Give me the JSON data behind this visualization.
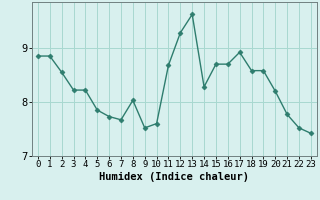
{
  "x": [
    0,
    1,
    2,
    3,
    4,
    5,
    6,
    7,
    8,
    9,
    10,
    11,
    12,
    13,
    14,
    15,
    16,
    17,
    18,
    19,
    20,
    21,
    22,
    23
  ],
  "y": [
    8.85,
    8.85,
    8.55,
    8.22,
    8.22,
    7.85,
    7.73,
    7.67,
    8.03,
    7.52,
    7.6,
    8.68,
    9.28,
    9.62,
    8.28,
    8.7,
    8.7,
    8.92,
    8.58,
    8.58,
    8.2,
    7.77,
    7.52,
    7.42
  ],
  "line_color": "#2e7d6e",
  "marker": "D",
  "marker_size": 2.5,
  "bg_color": "#d8f0ee",
  "plot_bg_color": "#d8f0ee",
  "grid_color": "#a8d8d0",
  "xlabel": "Humidex (Indice chaleur)",
  "ylim": [
    7.0,
    9.85
  ],
  "xlim": [
    -0.5,
    23.5
  ],
  "yticks": [
    7,
    8,
    9
  ],
  "xticks": [
    0,
    1,
    2,
    3,
    4,
    5,
    6,
    7,
    8,
    9,
    10,
    11,
    12,
    13,
    14,
    15,
    16,
    17,
    18,
    19,
    20,
    21,
    22,
    23
  ],
  "xlabel_fontsize": 7.5,
  "tick_fontsize": 6.5,
  "ytick_fontsize": 7.5,
  "axis_color": "#708080",
  "line_width": 1.0
}
